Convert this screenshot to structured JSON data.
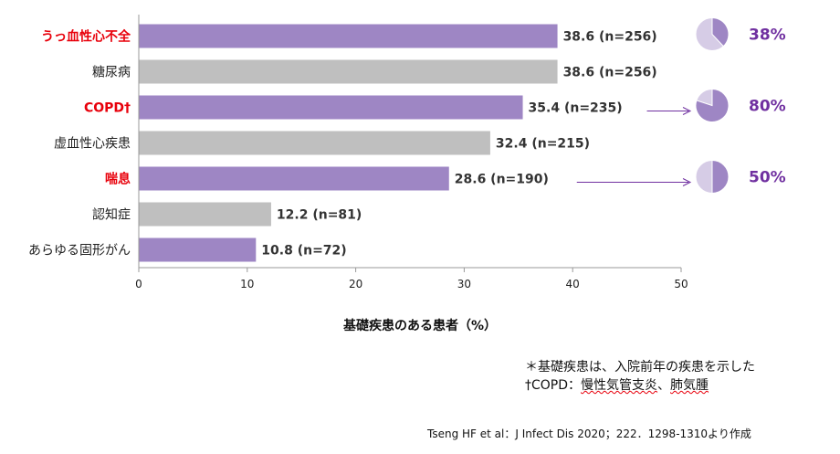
{
  "chart_data": {
    "type": "bar",
    "orientation": "horizontal",
    "categories": [
      "うっ血性心不全",
      "糖尿病",
      "COPD†",
      "虚血性心疾患",
      "喘息",
      "認知症",
      "あらゆる固形がん"
    ],
    "values": [
      38.6,
      38.6,
      35.4,
      32.4,
      28.6,
      12.2,
      10.8
    ],
    "value_labels": [
      "38.6 (n=256)",
      "38.6 (n=256)",
      "35.4 (n=235)",
      "32.4 (n=215)",
      "28.6 (n=190)",
      "12.2 (n=81)",
      "10.8 (n=72)"
    ],
    "highlighted": [
      true,
      false,
      true,
      false,
      true,
      false,
      true
    ],
    "xlabel": "基礎疾患のある患者（%）",
    "xlim": [
      0,
      50
    ],
    "xticks": [
      0,
      10,
      20,
      30,
      40,
      50
    ],
    "xtick_labels": [
      "0",
      "10",
      "20",
      "30",
      "40",
      "50"
    ],
    "grid": false,
    "colors": {
      "highlight": "#9e86c4",
      "normal": "#bfbfbf",
      "red_label": "#e8000b",
      "accent": "#7030a0",
      "pie_light": "#d6cce6"
    },
    "pies": [
      {
        "category": "うっ血性心不全",
        "percent": 38,
        "label": "38%"
      },
      {
        "category": "COPD†",
        "percent": 80,
        "label": "80%"
      },
      {
        "category": "喘息",
        "percent": 50,
        "label": "50%"
      }
    ]
  },
  "notes": {
    "line1": "＊基礎疾患は、入院前年の疾患を示した",
    "line2_prefix": "†COPD：",
    "line2_wavy1": "慢性気管支炎",
    "line2_sep": "、",
    "line2_wavy2": "肺気腫"
  },
  "source": "Tseng HF et al：J Infect Dis 2020；222．1298-1310より作成"
}
